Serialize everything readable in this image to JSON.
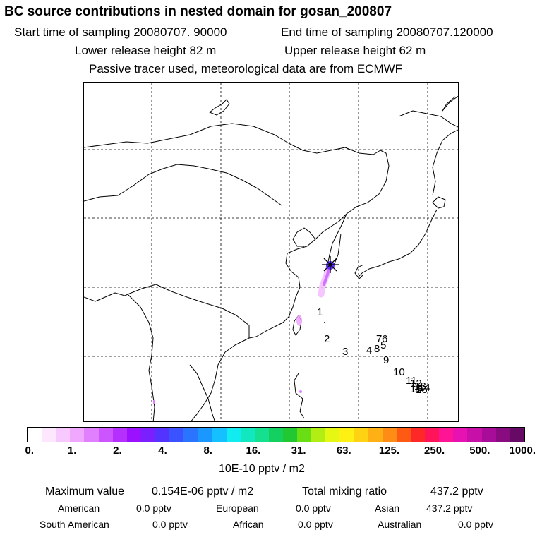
{
  "header": {
    "title": "BC  source contributions in nested domain for gosan_200807",
    "start_time": "Start time of sampling 20080707. 90000",
    "end_time": "End time of sampling 20080707.120000",
    "lower_height": "Lower release height   82 m",
    "upper_height": "Upper release height   62 m",
    "tracer_note": "Passive tracer used, meteorological data are from ECMWF"
  },
  "map": {
    "receptor_marker": "receptor-star-icon",
    "trajectory_points": [
      "1",
      "2",
      "3",
      "4",
      "8",
      "7",
      "6",
      "5",
      "9",
      "10",
      "11",
      "12",
      "13",
      "14",
      "15",
      "16"
    ]
  },
  "colorbar": {
    "colors": [
      "#ffffff",
      "#fde7ff",
      "#f7c9ff",
      "#f0a8ff",
      "#e080ff",
      "#cc55ff",
      "#b530ff",
      "#9a10ff",
      "#7a20ff",
      "#5533ff",
      "#3a52ff",
      "#2a74ff",
      "#1a98ff",
      "#14c0ff",
      "#10ecf0",
      "#12e8c0",
      "#14e090",
      "#14d060",
      "#22c832",
      "#6ade14",
      "#b2ee14",
      "#e4f814",
      "#fff014",
      "#ffd214",
      "#ffb014",
      "#ff8c14",
      "#ff5a14",
      "#ff2828",
      "#ff145a",
      "#ff1496",
      "#e812b2",
      "#c810a8",
      "#a80c98",
      "#880c80",
      "#660a66"
    ],
    "ticks": [
      "0.",
      "1.",
      "2.",
      "4.",
      "8.",
      "16.",
      "31.",
      "63.",
      "125.",
      "250.",
      "500.",
      "1000."
    ],
    "units": "10E-10 pptv / m2"
  },
  "summary": {
    "max_label": "Maximum value",
    "max_value": "0.154E-06 pptv / m2",
    "total_label": "Total mixing ratio",
    "total_value": "437.2 pptv",
    "regions": [
      {
        "name": "American",
        "value": "0.0 pptv"
      },
      {
        "name": "European",
        "value": "0.0 pptv"
      },
      {
        "name": "Asian",
        "value": "437.2 pptv"
      },
      {
        "name": "South American",
        "value": "0.0 pptv"
      },
      {
        "name": "African",
        "value": "0.0 pptv"
      },
      {
        "name": "Australian",
        "value": "0.0 pptv"
      }
    ]
  }
}
